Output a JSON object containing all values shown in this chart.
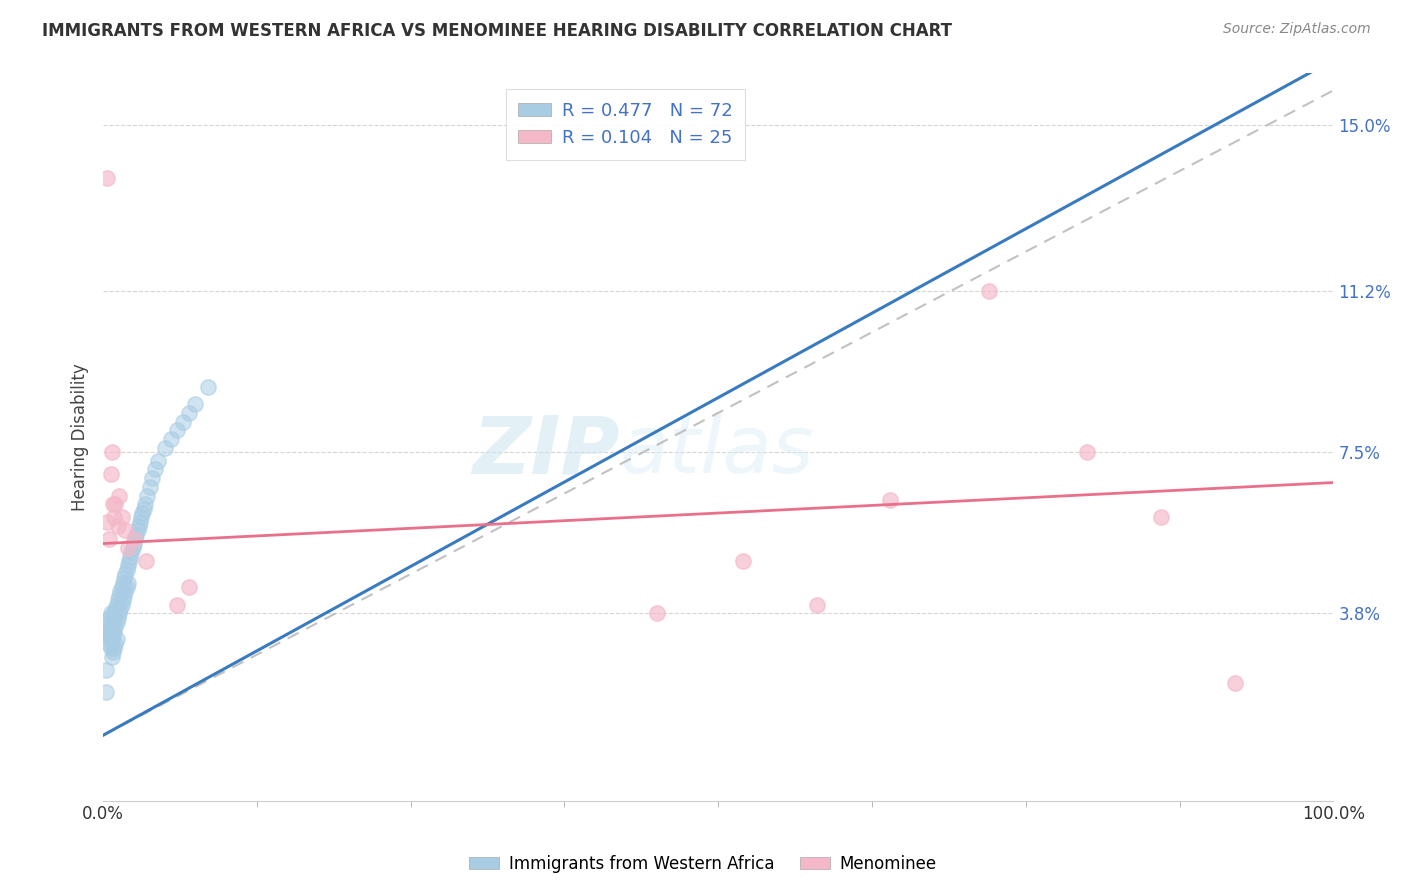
{
  "title": "IMMIGRANTS FROM WESTERN AFRICA VS MENOMINEE HEARING DISABILITY CORRELATION CHART",
  "source": "Source: ZipAtlas.com",
  "ylabel": "Hearing Disability",
  "xlim": [
    0,
    1.0
  ],
  "ylim": [
    -0.005,
    0.162
  ],
  "x_ticks": [
    0.0,
    1.0
  ],
  "x_tick_labels": [
    "0.0%",
    "100.0%"
  ],
  "y_ticks": [
    0.038,
    0.075,
    0.112,
    0.15
  ],
  "y_tick_labels": [
    "3.8%",
    "7.5%",
    "11.2%",
    "15.0%"
  ],
  "legend_r1": "R = 0.477",
  "legend_n1": "N = 72",
  "legend_r2": "R = 0.104",
  "legend_n2": "N = 25",
  "color_blue": "#a8cce4",
  "color_pink": "#f4b8c8",
  "line_color_blue": "#3a7bbf",
  "line_color_pink": "#e8708a",
  "dashed_line_color": "#bbbbbb",
  "watermark_zip": "ZIP",
  "watermark_atlas": "atlas",
  "blue_scatter_x": [
    0.002,
    0.003,
    0.003,
    0.004,
    0.004,
    0.005,
    0.005,
    0.005,
    0.006,
    0.006,
    0.006,
    0.007,
    0.007,
    0.007,
    0.008,
    0.008,
    0.008,
    0.009,
    0.009,
    0.009,
    0.01,
    0.01,
    0.01,
    0.011,
    0.011,
    0.011,
    0.012,
    0.012,
    0.013,
    0.013,
    0.014,
    0.014,
    0.015,
    0.015,
    0.016,
    0.016,
    0.017,
    0.017,
    0.018,
    0.018,
    0.019,
    0.019,
    0.02,
    0.02,
    0.021,
    0.022,
    0.023,
    0.024,
    0.025,
    0.026,
    0.027,
    0.028,
    0.029,
    0.03,
    0.031,
    0.032,
    0.033,
    0.034,
    0.036,
    0.038,
    0.04,
    0.042,
    0.045,
    0.05,
    0.055,
    0.06,
    0.065,
    0.07,
    0.075,
    0.085,
    0.002,
    0.002
  ],
  "blue_scatter_y": [
    0.034,
    0.035,
    0.033,
    0.036,
    0.032,
    0.037,
    0.033,
    0.031,
    0.038,
    0.034,
    0.03,
    0.036,
    0.032,
    0.028,
    0.037,
    0.033,
    0.029,
    0.038,
    0.034,
    0.03,
    0.039,
    0.035,
    0.031,
    0.04,
    0.036,
    0.032,
    0.041,
    0.037,
    0.042,
    0.038,
    0.043,
    0.039,
    0.044,
    0.04,
    0.045,
    0.041,
    0.046,
    0.042,
    0.047,
    0.043,
    0.048,
    0.044,
    0.049,
    0.045,
    0.05,
    0.051,
    0.052,
    0.053,
    0.054,
    0.055,
    0.056,
    0.057,
    0.058,
    0.059,
    0.06,
    0.061,
    0.062,
    0.063,
    0.065,
    0.067,
    0.069,
    0.071,
    0.073,
    0.076,
    0.078,
    0.08,
    0.082,
    0.084,
    0.086,
    0.09,
    0.025,
    0.02
  ],
  "pink_scatter_x": [
    0.003,
    0.003,
    0.005,
    0.006,
    0.007,
    0.008,
    0.009,
    0.01,
    0.012,
    0.013,
    0.015,
    0.018,
    0.02,
    0.025,
    0.035,
    0.06,
    0.07,
    0.45,
    0.52,
    0.58,
    0.64,
    0.72,
    0.8,
    0.86,
    0.92
  ],
  "pink_scatter_y": [
    0.138,
    0.059,
    0.055,
    0.07,
    0.075,
    0.063,
    0.06,
    0.063,
    0.058,
    0.065,
    0.06,
    0.057,
    0.053,
    0.055,
    0.05,
    0.04,
    0.044,
    0.038,
    0.05,
    0.04,
    0.064,
    0.112,
    0.075,
    0.06,
    0.022
  ],
  "blue_line_x": [
    0.0,
    1.0
  ],
  "blue_line_y": [
    0.01,
    0.165
  ],
  "pink_line_x": [
    0.0,
    1.0
  ],
  "pink_line_y": [
    0.054,
    0.068
  ],
  "dashed_line_x": [
    0.0,
    1.0
  ],
  "dashed_line_y": [
    0.01,
    0.158
  ]
}
